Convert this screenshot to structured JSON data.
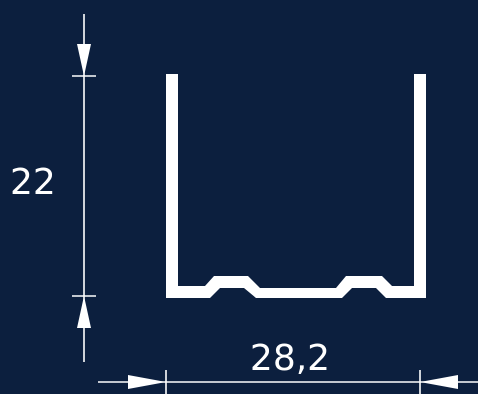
{
  "drawing": {
    "background_color": "#0c1f3e",
    "line_color": "#ffffff",
    "height_dimension": "22",
    "width_dimension": "28,2"
  }
}
